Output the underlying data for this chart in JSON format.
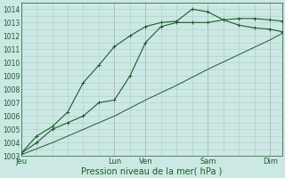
{
  "bg_color": "#cce8e4",
  "grid_color": "#aaccc8",
  "line_color": "#1a5c2a",
  "xlabel": "Pression niveau de la mer( hPa )",
  "ylim": [
    1003,
    1014.5
  ],
  "yticks": [
    1003,
    1004,
    1005,
    1006,
    1007,
    1008,
    1009,
    1010,
    1011,
    1012,
    1013,
    1014
  ],
  "day_labels": [
    "Jeu",
    "Lun",
    "Ven",
    "Sam",
    "Dim"
  ],
  "day_positions": [
    0,
    3.0,
    4.0,
    6.0,
    8.0
  ],
  "xlim": [
    0,
    8.4
  ],
  "series": [
    {
      "x": [
        0,
        1.0,
        2.0,
        3.0,
        4.0,
        5.0,
        6.0,
        7.0,
        8.0,
        8.4
      ],
      "y": [
        1003.1,
        1004.0,
        1005.0,
        1006.0,
        1007.2,
        1008.3,
        1009.5,
        1010.6,
        1011.7,
        1012.2
      ],
      "linestyle": "-",
      "marker": null,
      "linewidth": 0.7
    },
    {
      "x": [
        0,
        0.5,
        1.0,
        1.5,
        2.0,
        2.5,
        3.0,
        3.5,
        4.0,
        4.5,
        5.0,
        5.5,
        6.0,
        6.5,
        7.0,
        7.5,
        8.0,
        8.4
      ],
      "y": [
        1003.2,
        1004.5,
        1005.2,
        1006.3,
        1008.5,
        1009.8,
        1011.2,
        1012.0,
        1012.7,
        1013.0,
        1013.1,
        1014.0,
        1013.8,
        1013.2,
        1013.3,
        1013.3,
        1013.2,
        1013.1
      ],
      "linestyle": "-",
      "marker": "+",
      "linewidth": 0.8
    },
    {
      "x": [
        0,
        0.5,
        1.0,
        1.5,
        2.0,
        2.5,
        3.0,
        3.5,
        4.0,
        4.5,
        5.0,
        5.5,
        6.0,
        6.5,
        7.0,
        7.5,
        8.0,
        8.4
      ],
      "y": [
        1003.2,
        1004.0,
        1005.0,
        1005.5,
        1006.0,
        1007.0,
        1007.2,
        1009.0,
        1011.5,
        1012.7,
        1013.0,
        1013.0,
        1013.0,
        1013.2,
        1012.8,
        1012.6,
        1012.5,
        1012.3
      ],
      "linestyle": "-",
      "marker": "+",
      "linewidth": 0.8
    }
  ],
  "vline_color": "#c09090",
  "vline_positions": [
    3.0,
    4.0,
    6.0,
    8.0
  ],
  "ytick_fontsize": 5.5,
  "xtick_fontsize": 6.0,
  "xlabel_fontsize": 7.0
}
